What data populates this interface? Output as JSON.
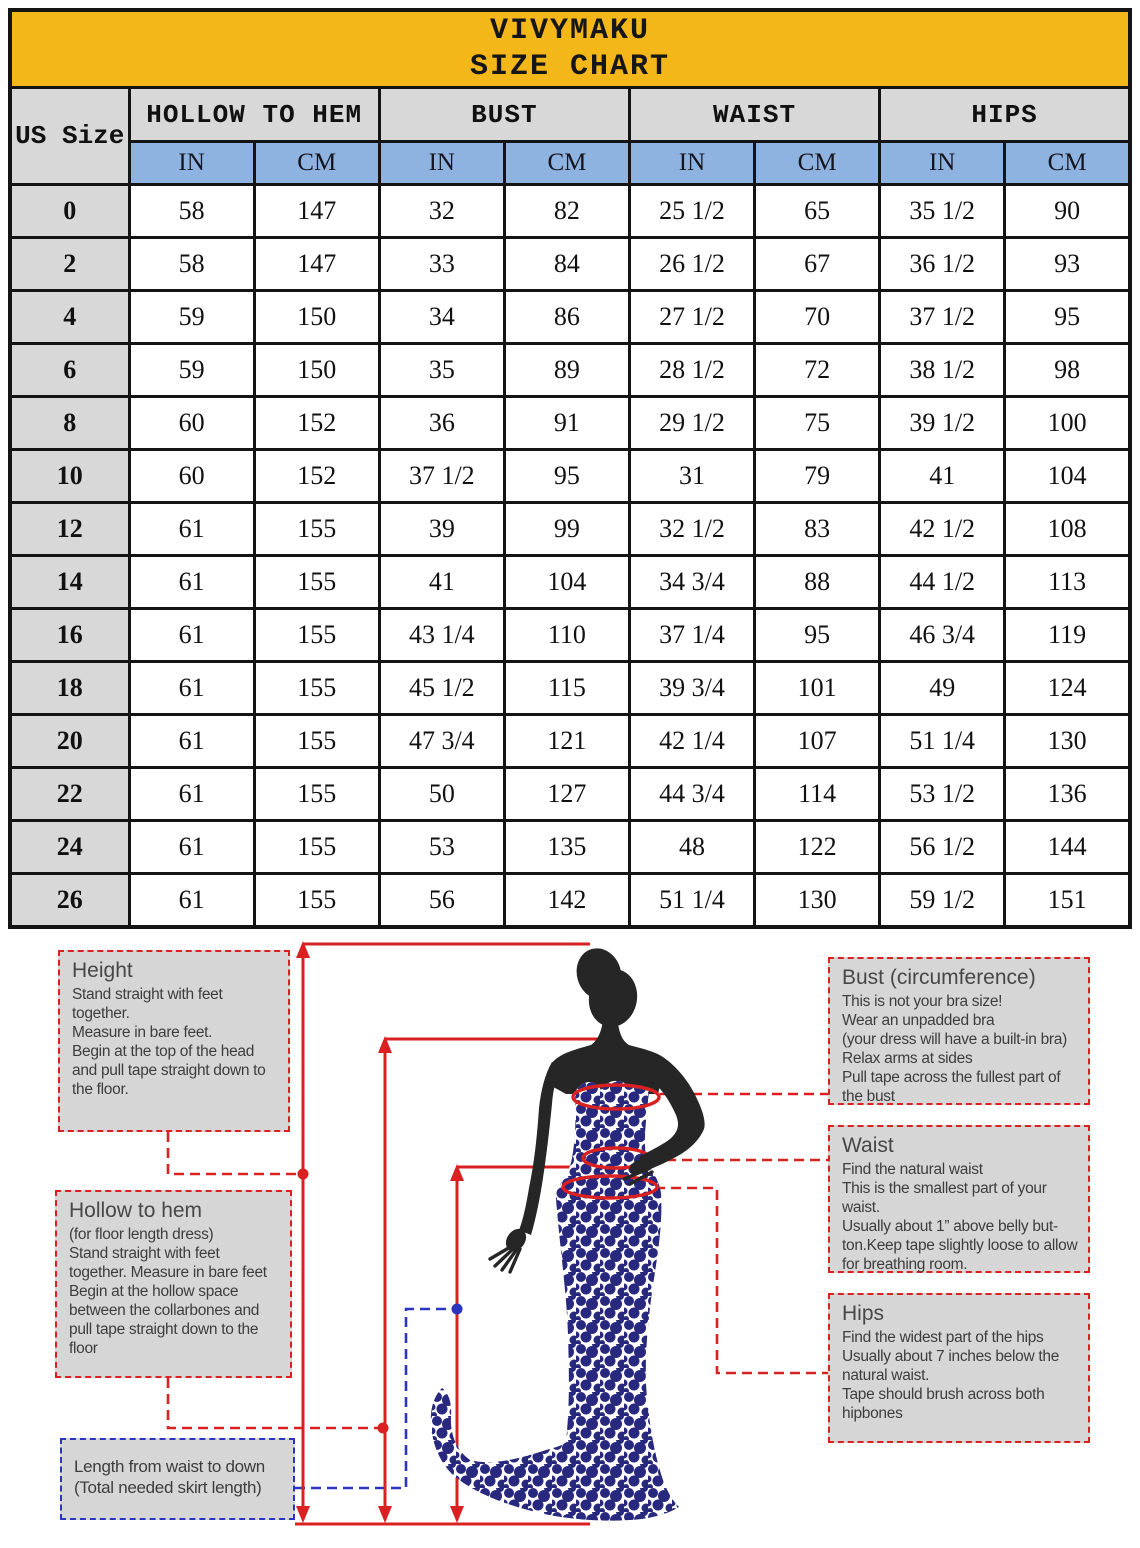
{
  "header": {
    "brand": "VIVYMAKU",
    "subtitle": "SIZE CHART"
  },
  "table": {
    "size_col_header": "US Size",
    "groups": [
      "HOLLOW TO HEM",
      "BUST",
      "WAIST",
      "HIPS"
    ],
    "unit_headers": [
      "IN",
      "CM",
      "IN",
      "CM",
      "IN",
      "CM",
      "IN",
      "CM"
    ],
    "rows": [
      {
        "size": "0",
        "values": [
          "58",
          "147",
          "32",
          "82",
          "25 1/2",
          "65",
          "35 1/2",
          "90"
        ]
      },
      {
        "size": "2",
        "values": [
          "58",
          "147",
          "33",
          "84",
          "26 1/2",
          "67",
          "36 1/2",
          "93"
        ]
      },
      {
        "size": "4",
        "values": [
          "59",
          "150",
          "34",
          "86",
          "27 1/2",
          "70",
          "37 1/2",
          "95"
        ]
      },
      {
        "size": "6",
        "values": [
          "59",
          "150",
          "35",
          "89",
          "28 1/2",
          "72",
          "38 1/2",
          "98"
        ]
      },
      {
        "size": "8",
        "values": [
          "60",
          "152",
          "36",
          "91",
          "29 1/2",
          "75",
          "39 1/2",
          "100"
        ]
      },
      {
        "size": "10",
        "values": [
          "60",
          "152",
          "37 1/2",
          "95",
          "31",
          "79",
          "41",
          "104"
        ]
      },
      {
        "size": "12",
        "values": [
          "61",
          "155",
          "39",
          "99",
          "32 1/2",
          "83",
          "42 1/2",
          "108"
        ]
      },
      {
        "size": "14",
        "values": [
          "61",
          "155",
          "41",
          "104",
          "34 3/4",
          "88",
          "44 1/2",
          "113"
        ]
      },
      {
        "size": "16",
        "values": [
          "61",
          "155",
          "43 1/4",
          "110",
          "37 1/4",
          "95",
          "46 3/4",
          "119"
        ]
      },
      {
        "size": "18",
        "values": [
          "61",
          "155",
          "45 1/2",
          "115",
          "39 3/4",
          "101",
          "49",
          "124"
        ]
      },
      {
        "size": "20",
        "values": [
          "61",
          "155",
          "47 3/4",
          "121",
          "42 1/4",
          "107",
          "51 1/4",
          "130"
        ]
      },
      {
        "size": "22",
        "values": [
          "61",
          "155",
          "50",
          "127",
          "44 3/4",
          "114",
          "53 1/2",
          "136"
        ]
      },
      {
        "size": "24",
        "values": [
          "61",
          "155",
          "53",
          "135",
          "48",
          "122",
          "56 1/2",
          "144"
        ]
      },
      {
        "size": "26",
        "values": [
          "61",
          "155",
          "56",
          "142",
          "51 1/4",
          "130",
          "59 1/2",
          "151"
        ]
      }
    ]
  },
  "notes": {
    "height": {
      "title": "Height",
      "lines": [
        "Stand straight with feet together.",
        "Measure in bare feet.",
        "Begin at the top of the head and pull tape straight down to the floor."
      ]
    },
    "hollow": {
      "title": "Hollow to hem",
      "lines": [
        "(for floor length dress)",
        "Stand straight with feet together. Measure in bare feet",
        "Begin at the hollow space between the collarbones and pull tape straight down to the floor"
      ]
    },
    "length": {
      "lines": [
        "Length from waist to down",
        "(Total needed skirt length)"
      ]
    },
    "bust": {
      "title": "Bust (circumference)",
      "lines": [
        "This is not your bra size!",
        "Wear an unpadded bra",
        "(your dress will have a built-in bra)",
        "Relax arms at sides",
        "Pull tape across the fullest part of the bust"
      ]
    },
    "waist": {
      "title": "Waist",
      "lines": [
        "Find the natural waist",
        "This is the smallest part of your waist.",
        "Usually about 1” above belly but-ton.Keep tape slightly loose to allow for breathing room."
      ]
    },
    "hips": {
      "title": "Hips",
      "lines": [
        "Find the widest part of the hips",
        "Usually about 7 inches below the natural waist.",
        "Tape should brush across both hipbones"
      ]
    }
  },
  "colors": {
    "yellow": "#F4B71A",
    "head-gray": "#D8D8D8",
    "head-blue": "#8FB3E1",
    "red": "#D92121",
    "blue-dash": "#2B35C0",
    "navy": "#28287E",
    "body-dark": "#262626",
    "box-gray": "#D6D6D6"
  }
}
